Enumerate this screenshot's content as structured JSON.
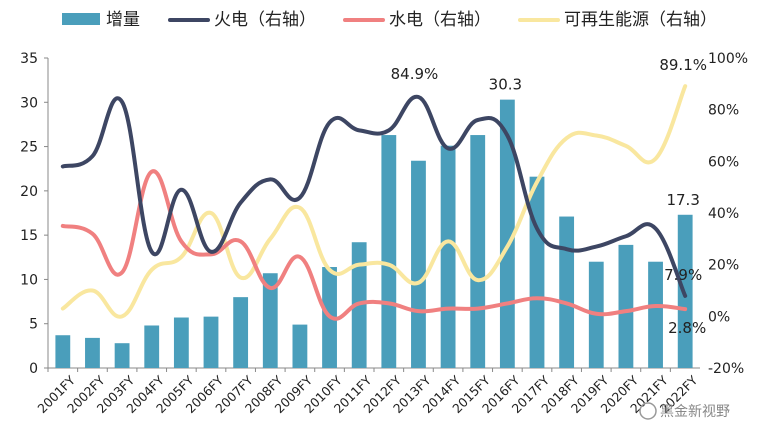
{
  "chart_data": {
    "type": "bar",
    "categories": [
      "2001FY",
      "2002FY",
      "2003FY",
      "2004FY",
      "2005FY",
      "2006FY",
      "2007FY",
      "2008FY",
      "2009FY",
      "2010FY",
      "2011FY",
      "2012FY",
      "2013FY",
      "2014FY",
      "2015FY",
      "2016FY",
      "2017FY",
      "2018FY",
      "2019FY",
      "2020FY",
      "2021FY",
      "2022FY"
    ],
    "bar_series": {
      "name": "增量",
      "values": [
        3.7,
        3.4,
        2.8,
        4.8,
        5.7,
        5.8,
        8.0,
        10.7,
        4.9,
        11.4,
        14.2,
        26.3,
        23.4,
        25.1,
        26.3,
        30.3,
        21.6,
        17.1,
        12.0,
        13.9,
        12.0,
        17.3
      ],
      "color": "#4A9EBB"
    },
    "line_series": [
      {
        "name": "火电（右轴）",
        "color": "#3D4663",
        "values": [
          58,
          62,
          83,
          25,
          49,
          25,
          44,
          53,
          46,
          75,
          72,
          72,
          84.9,
          65,
          76,
          70,
          34,
          26,
          27,
          31,
          34,
          7.9
        ]
      },
      {
        "name": "水电（右轴）",
        "color": "#F08080",
        "values": [
          35,
          32,
          17,
          56,
          29,
          24,
          29,
          11,
          23,
          0,
          5,
          5,
          2,
          3,
          3,
          5,
          7,
          5,
          1,
          2,
          4,
          2.8
        ]
      },
      {
        "name": "可再生能源（右轴）",
        "color": "#F9E79F",
        "values": [
          3,
          10,
          0,
          18,
          23,
          40,
          15,
          30,
          42,
          18,
          20,
          20,
          13,
          29,
          14,
          27,
          52,
          69,
          70,
          66,
          61,
          89.1
        ]
      }
    ],
    "y_left": {
      "min": 0,
      "max": 35,
      "ticks": [
        "0",
        "5",
        "10",
        "15",
        "20",
        "25",
        "30",
        "35"
      ]
    },
    "y_right": {
      "min": -20,
      "max": 100,
      "ticks": [
        "-20%",
        "0%",
        "20%",
        "40%",
        "60%",
        "80%",
        "100%"
      ]
    },
    "annotations": [
      "84.9%",
      "30.3",
      "89.1%",
      "17.3",
      "7.9%",
      "2.8%"
    ],
    "legend_position": "top",
    "grid": false
  },
  "watermark": "黑金新视野"
}
